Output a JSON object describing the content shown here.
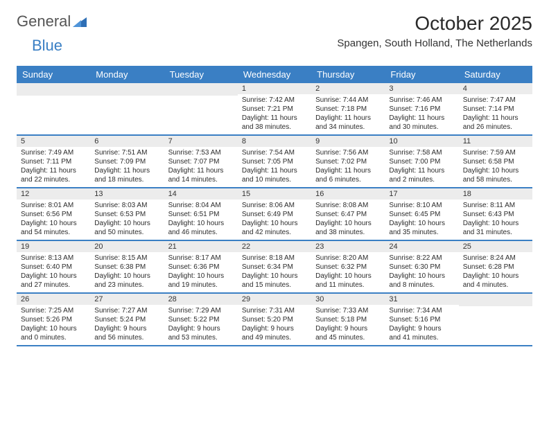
{
  "brand": {
    "part1": "General",
    "part2": "Blue"
  },
  "title": {
    "month": "October 2025",
    "location": "Spangen, South Holland, The Netherlands"
  },
  "colors": {
    "accent": "#3a7fc4",
    "band": "#ececec",
    "text": "#2b2b2b",
    "bg": "#ffffff"
  },
  "weekdays": [
    "Sunday",
    "Monday",
    "Tuesday",
    "Wednesday",
    "Thursday",
    "Friday",
    "Saturday"
  ],
  "weeks": [
    [
      null,
      null,
      null,
      {
        "day": "1",
        "sunrise": "Sunrise: 7:42 AM",
        "sunset": "Sunset: 7:21 PM",
        "dl1": "Daylight: 11 hours",
        "dl2": "and 38 minutes."
      },
      {
        "day": "2",
        "sunrise": "Sunrise: 7:44 AM",
        "sunset": "Sunset: 7:18 PM",
        "dl1": "Daylight: 11 hours",
        "dl2": "and 34 minutes."
      },
      {
        "day": "3",
        "sunrise": "Sunrise: 7:46 AM",
        "sunset": "Sunset: 7:16 PM",
        "dl1": "Daylight: 11 hours",
        "dl2": "and 30 minutes."
      },
      {
        "day": "4",
        "sunrise": "Sunrise: 7:47 AM",
        "sunset": "Sunset: 7:14 PM",
        "dl1": "Daylight: 11 hours",
        "dl2": "and 26 minutes."
      }
    ],
    [
      {
        "day": "5",
        "sunrise": "Sunrise: 7:49 AM",
        "sunset": "Sunset: 7:11 PM",
        "dl1": "Daylight: 11 hours",
        "dl2": "and 22 minutes."
      },
      {
        "day": "6",
        "sunrise": "Sunrise: 7:51 AM",
        "sunset": "Sunset: 7:09 PM",
        "dl1": "Daylight: 11 hours",
        "dl2": "and 18 minutes."
      },
      {
        "day": "7",
        "sunrise": "Sunrise: 7:53 AM",
        "sunset": "Sunset: 7:07 PM",
        "dl1": "Daylight: 11 hours",
        "dl2": "and 14 minutes."
      },
      {
        "day": "8",
        "sunrise": "Sunrise: 7:54 AM",
        "sunset": "Sunset: 7:05 PM",
        "dl1": "Daylight: 11 hours",
        "dl2": "and 10 minutes."
      },
      {
        "day": "9",
        "sunrise": "Sunrise: 7:56 AM",
        "sunset": "Sunset: 7:02 PM",
        "dl1": "Daylight: 11 hours",
        "dl2": "and 6 minutes."
      },
      {
        "day": "10",
        "sunrise": "Sunrise: 7:58 AM",
        "sunset": "Sunset: 7:00 PM",
        "dl1": "Daylight: 11 hours",
        "dl2": "and 2 minutes."
      },
      {
        "day": "11",
        "sunrise": "Sunrise: 7:59 AM",
        "sunset": "Sunset: 6:58 PM",
        "dl1": "Daylight: 10 hours",
        "dl2": "and 58 minutes."
      }
    ],
    [
      {
        "day": "12",
        "sunrise": "Sunrise: 8:01 AM",
        "sunset": "Sunset: 6:56 PM",
        "dl1": "Daylight: 10 hours",
        "dl2": "and 54 minutes."
      },
      {
        "day": "13",
        "sunrise": "Sunrise: 8:03 AM",
        "sunset": "Sunset: 6:53 PM",
        "dl1": "Daylight: 10 hours",
        "dl2": "and 50 minutes."
      },
      {
        "day": "14",
        "sunrise": "Sunrise: 8:04 AM",
        "sunset": "Sunset: 6:51 PM",
        "dl1": "Daylight: 10 hours",
        "dl2": "and 46 minutes."
      },
      {
        "day": "15",
        "sunrise": "Sunrise: 8:06 AM",
        "sunset": "Sunset: 6:49 PM",
        "dl1": "Daylight: 10 hours",
        "dl2": "and 42 minutes."
      },
      {
        "day": "16",
        "sunrise": "Sunrise: 8:08 AM",
        "sunset": "Sunset: 6:47 PM",
        "dl1": "Daylight: 10 hours",
        "dl2": "and 38 minutes."
      },
      {
        "day": "17",
        "sunrise": "Sunrise: 8:10 AM",
        "sunset": "Sunset: 6:45 PM",
        "dl1": "Daylight: 10 hours",
        "dl2": "and 35 minutes."
      },
      {
        "day": "18",
        "sunrise": "Sunrise: 8:11 AM",
        "sunset": "Sunset: 6:43 PM",
        "dl1": "Daylight: 10 hours",
        "dl2": "and 31 minutes."
      }
    ],
    [
      {
        "day": "19",
        "sunrise": "Sunrise: 8:13 AM",
        "sunset": "Sunset: 6:40 PM",
        "dl1": "Daylight: 10 hours",
        "dl2": "and 27 minutes."
      },
      {
        "day": "20",
        "sunrise": "Sunrise: 8:15 AM",
        "sunset": "Sunset: 6:38 PM",
        "dl1": "Daylight: 10 hours",
        "dl2": "and 23 minutes."
      },
      {
        "day": "21",
        "sunrise": "Sunrise: 8:17 AM",
        "sunset": "Sunset: 6:36 PM",
        "dl1": "Daylight: 10 hours",
        "dl2": "and 19 minutes."
      },
      {
        "day": "22",
        "sunrise": "Sunrise: 8:18 AM",
        "sunset": "Sunset: 6:34 PM",
        "dl1": "Daylight: 10 hours",
        "dl2": "and 15 minutes."
      },
      {
        "day": "23",
        "sunrise": "Sunrise: 8:20 AM",
        "sunset": "Sunset: 6:32 PM",
        "dl1": "Daylight: 10 hours",
        "dl2": "and 11 minutes."
      },
      {
        "day": "24",
        "sunrise": "Sunrise: 8:22 AM",
        "sunset": "Sunset: 6:30 PM",
        "dl1": "Daylight: 10 hours",
        "dl2": "and 8 minutes."
      },
      {
        "day": "25",
        "sunrise": "Sunrise: 8:24 AM",
        "sunset": "Sunset: 6:28 PM",
        "dl1": "Daylight: 10 hours",
        "dl2": "and 4 minutes."
      }
    ],
    [
      {
        "day": "26",
        "sunrise": "Sunrise: 7:25 AM",
        "sunset": "Sunset: 5:26 PM",
        "dl1": "Daylight: 10 hours",
        "dl2": "and 0 minutes."
      },
      {
        "day": "27",
        "sunrise": "Sunrise: 7:27 AM",
        "sunset": "Sunset: 5:24 PM",
        "dl1": "Daylight: 9 hours",
        "dl2": "and 56 minutes."
      },
      {
        "day": "28",
        "sunrise": "Sunrise: 7:29 AM",
        "sunset": "Sunset: 5:22 PM",
        "dl1": "Daylight: 9 hours",
        "dl2": "and 53 minutes."
      },
      {
        "day": "29",
        "sunrise": "Sunrise: 7:31 AM",
        "sunset": "Sunset: 5:20 PM",
        "dl1": "Daylight: 9 hours",
        "dl2": "and 49 minutes."
      },
      {
        "day": "30",
        "sunrise": "Sunrise: 7:33 AM",
        "sunset": "Sunset: 5:18 PM",
        "dl1": "Daylight: 9 hours",
        "dl2": "and 45 minutes."
      },
      {
        "day": "31",
        "sunrise": "Sunrise: 7:34 AM",
        "sunset": "Sunset: 5:16 PM",
        "dl1": "Daylight: 9 hours",
        "dl2": "and 41 minutes."
      },
      null
    ]
  ]
}
